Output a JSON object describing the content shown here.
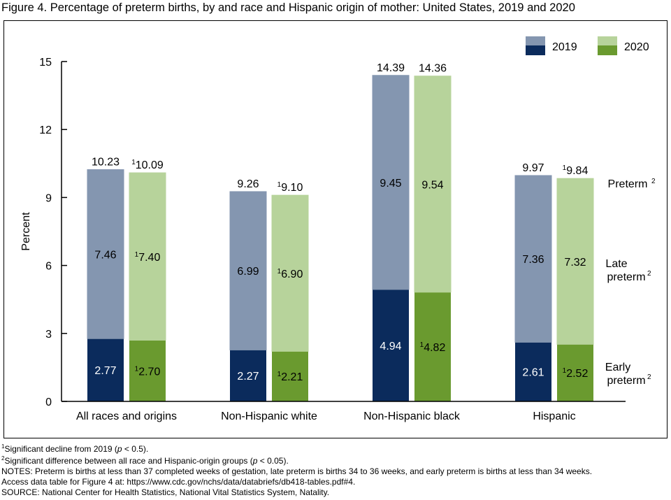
{
  "title": "Figure 4. Percentage of preterm births, by and race and Hispanic origin of mother: United States, 2019 and 2020",
  "chart_data": {
    "type": "bar",
    "stacked": true,
    "ylabel": "Percent",
    "ylim": [
      0,
      15
    ],
    "yticks": [
      "0",
      "3",
      "6",
      "9",
      "12",
      "15"
    ],
    "categories": [
      "All races and origins",
      "Non-Hispanic white",
      "Non-Hispanic black",
      "Hispanic"
    ],
    "series": [
      {
        "name": "2019",
        "early_color": "#0b2b5c",
        "late_color": "#8496b0",
        "early": [
          2.77,
          2.27,
          4.94,
          2.61
        ],
        "late": [
          7.46,
          6.99,
          9.45,
          7.36
        ],
        "total": [
          10.23,
          9.26,
          14.39,
          9.97
        ],
        "early_labels": [
          "2.77",
          "2.27",
          "4.94",
          "2.61"
        ],
        "late_labels": [
          "7.46",
          "6.99",
          "9.45",
          "7.36"
        ],
        "total_labels": [
          "10.23",
          "9.26",
          "14.39",
          "9.97"
        ],
        "early_sup": [
          "",
          "",
          "",
          ""
        ],
        "late_sup": [
          "",
          "",
          "",
          ""
        ],
        "total_sup": [
          "",
          "",
          "",
          ""
        ]
      },
      {
        "name": "2020",
        "early_color": "#6a9a2f",
        "late_color": "#b7d39b",
        "early": [
          2.7,
          2.21,
          4.82,
          2.52
        ],
        "late": [
          7.4,
          6.9,
          9.54,
          7.32
        ],
        "total": [
          10.09,
          9.1,
          14.36,
          9.84
        ],
        "early_labels": [
          "2.70",
          "2.21",
          "4.82",
          "2.52"
        ],
        "late_labels": [
          "7.40",
          "6.90",
          "9.54",
          "7.32"
        ],
        "total_labels": [
          "10.09",
          "9.10",
          "14.36",
          "9.84"
        ],
        "early_sup": [
          "1",
          "1",
          "1",
          "1"
        ],
        "late_sup": [
          "1",
          "1",
          "",
          ""
        ],
        "total_sup": [
          "1",
          "1",
          "",
          "1"
        ]
      }
    ],
    "legend": {
      "position": "top-right",
      "entries": [
        "2019",
        "2020"
      ]
    },
    "side_labels": {
      "preterm": {
        "text": "Preterm",
        "sup": "2"
      },
      "late_preterm": {
        "line1": "Late",
        "line2": "preterm",
        "sup": "2"
      },
      "early_preterm": {
        "line1": "Early",
        "line2": "preterm",
        "sup": "2"
      }
    },
    "grid": false
  },
  "footnotes": {
    "note1": {
      "sup": "1",
      "pre": "Significant decline from 2019 (",
      "var": "p",
      "post": " < 0.5)."
    },
    "note2": {
      "sup": "2",
      "pre": "Significant difference between all race and Hispanic-origin groups (",
      "var": "p",
      "post": " < 0.05)."
    },
    "notes": "NOTES: Preterm is births at less than 37 completed weeks of gestation, late preterm is births 34 to 36 weeks, and early preterm is births at less than 34 weeks.",
    "access": "Access data table for Figure 4 at: https://www.cdc.gov/nchs/data/databriefs/db418-tables.pdf#4.",
    "source": "SOURCE: National Center for Health Statistics, National Vital Statistics System, Natality."
  }
}
